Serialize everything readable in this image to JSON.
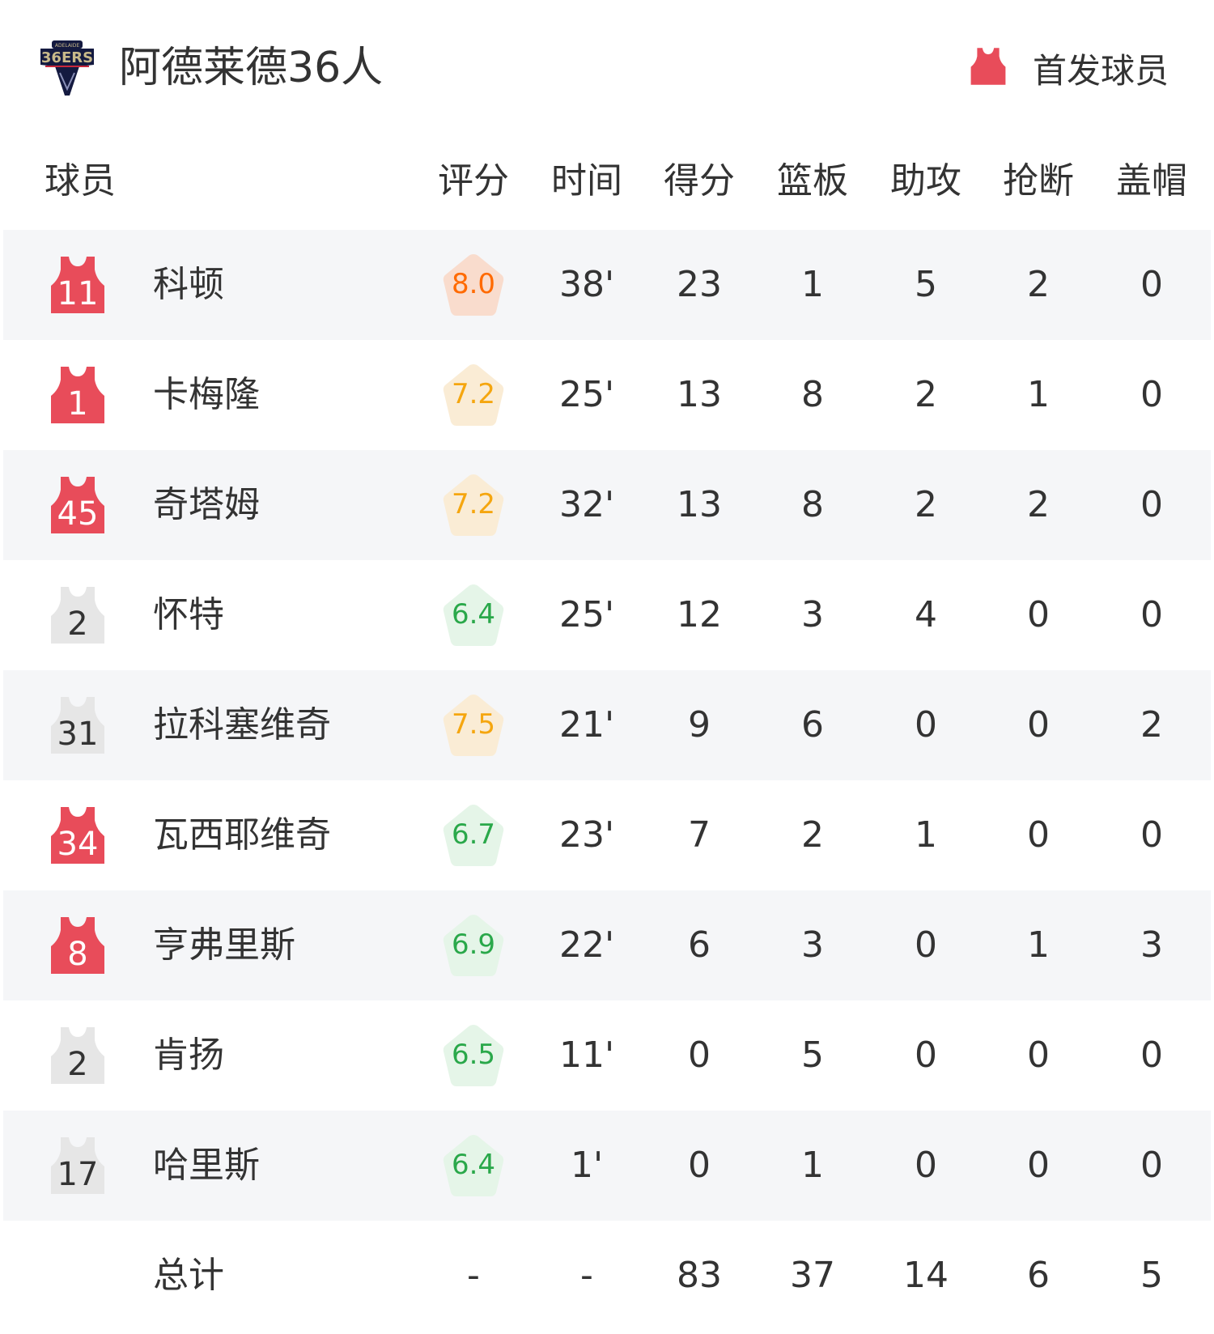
{
  "header": {
    "team_name": "阿德莱德36人",
    "team_logo_text": "ADELAIDE 36ERS",
    "legend_label": "首发球员",
    "legend_icon": "jersey-icon"
  },
  "colors": {
    "starter_jersey": "#e84c5a",
    "bench_jersey": "#e6e6e6",
    "row_alt_bg": "#f5f6f8",
    "rating_high_text": "#ff6a00",
    "rating_high_bg": "#f9dccd",
    "rating_mid_text": "#f5a60f",
    "rating_mid_bg": "#faecd5",
    "rating_low_text": "#2aa84a",
    "rating_low_bg": "#e5f5e8"
  },
  "columns": [
    "球员",
    "评分",
    "时间",
    "得分",
    "篮板",
    "助攻",
    "抢断",
    "盖帽"
  ],
  "players": [
    {
      "number": "11",
      "starter": true,
      "name": "科顿",
      "rating": "8.0",
      "tier": "high",
      "minutes": "38'",
      "points": "23",
      "rebounds": "1",
      "assists": "5",
      "steals": "2",
      "blocks": "0"
    },
    {
      "number": "1",
      "starter": true,
      "name": "卡梅隆",
      "rating": "7.2",
      "tier": "mid",
      "minutes": "25'",
      "points": "13",
      "rebounds": "8",
      "assists": "2",
      "steals": "1",
      "blocks": "0"
    },
    {
      "number": "45",
      "starter": true,
      "name": "奇塔姆",
      "rating": "7.2",
      "tier": "mid",
      "minutes": "32'",
      "points": "13",
      "rebounds": "8",
      "assists": "2",
      "steals": "2",
      "blocks": "0"
    },
    {
      "number": "2",
      "starter": false,
      "name": "怀特",
      "rating": "6.4",
      "tier": "low",
      "minutes": "25'",
      "points": "12",
      "rebounds": "3",
      "assists": "4",
      "steals": "0",
      "blocks": "0"
    },
    {
      "number": "31",
      "starter": false,
      "name": "拉科塞维奇",
      "rating": "7.5",
      "tier": "mid",
      "minutes": "21'",
      "points": "9",
      "rebounds": "6",
      "assists": "0",
      "steals": "0",
      "blocks": "2"
    },
    {
      "number": "34",
      "starter": true,
      "name": "瓦西耶维奇",
      "rating": "6.7",
      "tier": "low",
      "minutes": "23'",
      "points": "7",
      "rebounds": "2",
      "assists": "1",
      "steals": "0",
      "blocks": "0"
    },
    {
      "number": "8",
      "starter": true,
      "name": "亨弗里斯",
      "rating": "6.9",
      "tier": "low",
      "minutes": "22'",
      "points": "6",
      "rebounds": "3",
      "assists": "0",
      "steals": "1",
      "blocks": "3"
    },
    {
      "number": "2",
      "starter": false,
      "name": "肯扬",
      "rating": "6.5",
      "tier": "low",
      "minutes": "11'",
      "points": "0",
      "rebounds": "5",
      "assists": "0",
      "steals": "0",
      "blocks": "0"
    },
    {
      "number": "17",
      "starter": false,
      "name": "哈里斯",
      "rating": "6.4",
      "tier": "low",
      "minutes": "1'",
      "points": "0",
      "rebounds": "1",
      "assists": "0",
      "steals": "0",
      "blocks": "0"
    }
  ],
  "totals": {
    "label": "总计",
    "rating": "-",
    "minutes": "-",
    "points": "83",
    "rebounds": "37",
    "assists": "14",
    "steals": "6",
    "blocks": "5"
  }
}
